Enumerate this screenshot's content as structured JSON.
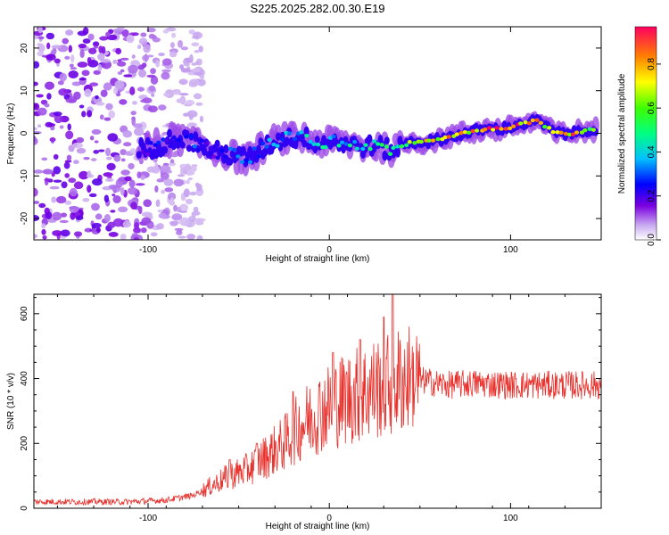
{
  "title": "S225.2025.282.00.30.E19",
  "chart_data": [
    {
      "type": "heatmap",
      "name": "spectrogram",
      "xlabel": "Height of straight line (km)",
      "ylabel": "Frequency (Hz)",
      "xlim": [
        -163,
        150
      ],
      "ylim": [
        -25,
        25
      ],
      "xticks": [
        -100,
        0,
        100
      ],
      "yticks": [
        -20,
        -10,
        0,
        10,
        20
      ],
      "colorbar": {
        "label": "Normalized spectral amplitude",
        "range": [
          0,
          0.97
        ],
        "ticks": [
          0.0,
          0.2,
          0.4,
          0.6,
          0.8
        ]
      },
      "ridge": {
        "description": "dominant frequency vs height",
        "x": [
          -105,
          -95,
          -85,
          -75,
          -65,
          -55,
          -45,
          -35,
          -25,
          -15,
          -5,
          5,
          15,
          25,
          35,
          45,
          55,
          65,
          75,
          85,
          95,
          105,
          115,
          125,
          135,
          145
        ],
        "freq": [
          -4,
          -3,
          -1,
          -2,
          -4,
          -5,
          -6,
          -3,
          -1,
          -1,
          -2,
          -2,
          -3,
          -3,
          -4,
          -2,
          -2,
          -1,
          0,
          1,
          1,
          2,
          3,
          0,
          0,
          1
        ],
        "amplitude": [
          0.15,
          0.25,
          0.25,
          0.3,
          0.2,
          0.3,
          0.35,
          0.35,
          0.4,
          0.4,
          0.45,
          0.45,
          0.45,
          0.5,
          0.6,
          0.65,
          0.75,
          0.8,
          0.85,
          0.9,
          0.95,
          0.95,
          0.8,
          0.85,
          0.85,
          0.7
        ]
      },
      "noise_region": {
        "x_from": -163,
        "x_to": -80
      }
    },
    {
      "type": "line",
      "name": "snr",
      "color": "#e8312c",
      "xlabel": "Height of straight line (km)",
      "ylabel": "SNR (10 * v/v)",
      "xlim": [
        -163,
        150
      ],
      "ylim": [
        0,
        660
      ],
      "xticks": [
        -100,
        0,
        100
      ],
      "yticks": [
        0,
        200,
        400,
        600
      ],
      "trend": {
        "x": [
          -163,
          -110,
          -90,
          -75,
          -65,
          -55,
          -45,
          -35,
          -25,
          -15,
          -5,
          5,
          15,
          25,
          35,
          45,
          55,
          65,
          80,
          100,
          120,
          150
        ],
        "y": [
          20,
          20,
          25,
          40,
          70,
          100,
          120,
          160,
          200,
          260,
          300,
          330,
          350,
          370,
          390,
          400,
          390,
          380,
          385,
          380,
          380,
          380
        ]
      },
      "peaks": [
        {
          "x": -55,
          "y": 150
        },
        {
          "x": -40,
          "y": 200
        },
        {
          "x": -20,
          "y": 360
        },
        {
          "x": 2,
          "y": 480
        },
        {
          "x": 17,
          "y": 520
        },
        {
          "x": 30,
          "y": 590
        },
        {
          "x": 35,
          "y": 660
        },
        {
          "x": 45,
          "y": 430
        }
      ]
    }
  ]
}
